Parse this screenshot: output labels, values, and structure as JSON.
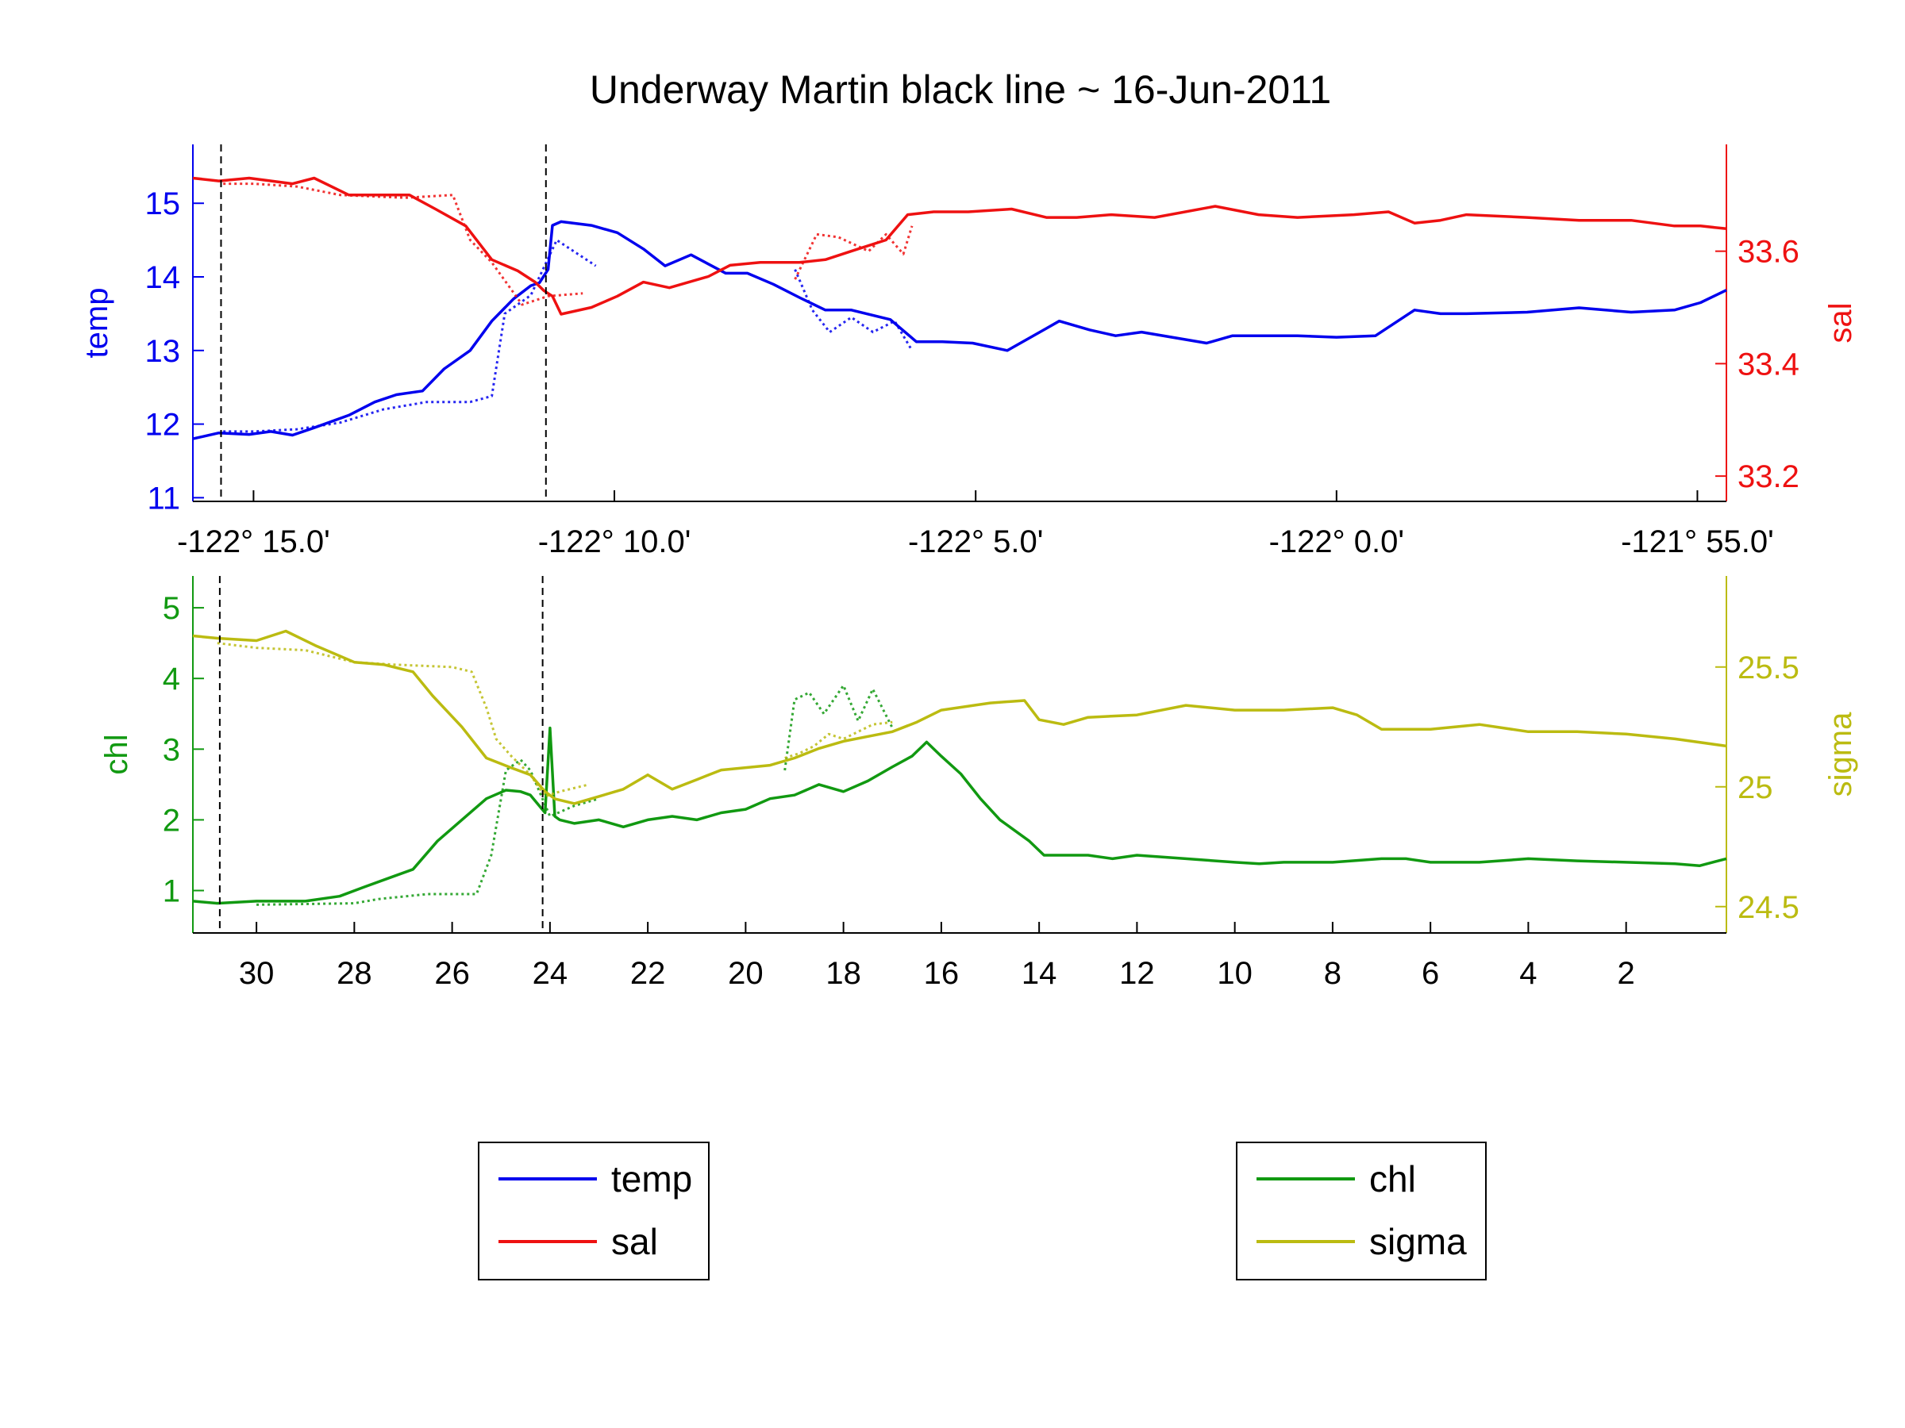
{
  "figure": {
    "title": "Underway Martin black line ~ 16-Jun-2011"
  },
  "colors": {
    "temp": "#0000ee",
    "sal": "#ee1111",
    "chl": "#119911",
    "sigma": "#bbbb11",
    "marker": "#000000"
  },
  "chart_data": [
    {
      "type": "line",
      "panel": "top",
      "xlim": [
        -122.264,
        -121.91
      ],
      "xticks": [
        -122.25,
        -122.1667,
        -122.0833,
        -122.0,
        -121.9167
      ],
      "xtick_labels": [
        "-122° 15.0'",
        "-122° 10.0'",
        "-122° 5.0'",
        "-122° 0.0'",
        "-121° 55.0'"
      ],
      "vlines_x": [
        -122.2575,
        -122.1825
      ],
      "left_axis": {
        "label": "temp",
        "ylim": [
          10.95,
          15.8
        ],
        "ticks": [
          11,
          12,
          13,
          14,
          15
        ],
        "tick_labels": [
          "11",
          "12",
          "13",
          "14",
          "15"
        ]
      },
      "right_axis": {
        "label": "sal",
        "ylim": [
          33.155,
          33.79
        ],
        "ticks": [
          33.2,
          33.4,
          33.6
        ],
        "tick_labels": [
          "33.2",
          "33.4",
          "33.6"
        ]
      },
      "series": [
        {
          "name": "temp",
          "axis": "left",
          "style": "solid",
          "x": [
            -122.264,
            -122.258,
            -122.251,
            -122.246,
            -122.241,
            -122.236,
            -122.228,
            -122.222,
            -122.217,
            -122.211,
            -122.206,
            -122.2,
            -122.195,
            -122.19,
            -122.186,
            -122.184,
            -122.182,
            -122.181,
            -122.179,
            -122.172,
            -122.166,
            -122.16,
            -122.155,
            -122.149,
            -122.141,
            -122.136,
            -122.13,
            -122.124,
            -122.118,
            -122.112,
            -122.103,
            -122.097,
            -122.091,
            -122.084,
            -122.076,
            -122.067,
            -122.064,
            -122.057,
            -122.051,
            -122.045,
            -122.03,
            -122.024,
            -122.018,
            -122.009,
            -122.0,
            -121.991,
            -121.982,
            -121.976,
            -121.97,
            -121.956,
            -121.944,
            -121.932,
            -121.922,
            -121.916,
            -121.91
          ],
          "y": [
            11.8,
            11.88,
            11.86,
            11.9,
            11.85,
            11.95,
            12.12,
            12.3,
            12.4,
            12.45,
            12.75,
            13.0,
            13.4,
            13.7,
            13.88,
            13.92,
            14.1,
            14.7,
            14.75,
            14.7,
            14.6,
            14.38,
            14.15,
            14.3,
            14.05,
            14.05,
            13.9,
            13.72,
            13.55,
            13.55,
            13.42,
            13.12,
            13.12,
            13.1,
            13.0,
            13.3,
            13.4,
            13.28,
            13.2,
            13.25,
            13.1,
            13.2,
            13.2,
            13.2,
            13.18,
            13.2,
            13.55,
            13.5,
            13.5,
            13.52,
            13.58,
            13.52,
            13.55,
            13.65,
            13.82
          ]
        },
        {
          "name": "temp (dotted)",
          "axis": "left",
          "style": "dotted",
          "x": [
            -122.257,
            -122.25,
            -122.24,
            -122.23,
            -122.22,
            -122.21,
            -122.2,
            -122.195,
            -122.192,
            -122.186,
            -122.18,
            -122.171
          ],
          "y": [
            11.9,
            11.9,
            11.93,
            12.02,
            12.2,
            12.3,
            12.3,
            12.38,
            13.5,
            13.75,
            14.5,
            14.15
          ]
        },
        {
          "name": "temp (dotted, mid)",
          "axis": "left",
          "style": "dotted",
          "x": [
            -122.125,
            -122.121,
            -122.117,
            -122.112,
            -122.107,
            -122.102,
            -122.098
          ],
          "y": [
            14.1,
            13.55,
            13.25,
            13.45,
            13.25,
            13.4,
            13.0
          ]
        },
        {
          "name": "sal",
          "axis": "right",
          "style": "solid",
          "x": [
            -122.264,
            -122.258,
            -122.251,
            -122.241,
            -122.236,
            -122.228,
            -122.222,
            -122.214,
            -122.208,
            -122.201,
            -122.195,
            -122.189,
            -122.185,
            -122.183,
            -122.181,
            -122.179,
            -122.172,
            -122.166,
            -122.16,
            -122.154,
            -122.145,
            -122.14,
            -122.133,
            -122.124,
            -122.118,
            -122.112,
            -122.104,
            -122.099,
            -122.093,
            -122.085,
            -122.075,
            -122.067,
            -122.06,
            -122.052,
            -122.042,
            -122.028,
            -122.018,
            -122.009,
            -121.996,
            -121.988,
            -121.982,
            -121.976,
            -121.97,
            -121.956,
            -121.944,
            -121.932,
            -121.922,
            -121.916,
            -121.91
          ],
          "y": [
            33.73,
            33.725,
            33.73,
            33.72,
            33.73,
            33.7,
            33.7,
            33.7,
            33.675,
            33.645,
            33.585,
            33.565,
            33.545,
            33.53,
            33.52,
            33.488,
            33.5,
            33.52,
            33.545,
            33.535,
            33.555,
            33.575,
            33.58,
            33.58,
            33.585,
            33.6,
            33.62,
            33.665,
            33.67,
            33.67,
            33.675,
            33.66,
            33.66,
            33.665,
            33.66,
            33.68,
            33.665,
            33.66,
            33.665,
            33.67,
            33.65,
            33.655,
            33.665,
            33.66,
            33.655,
            33.655,
            33.645,
            33.645,
            33.64
          ]
        },
        {
          "name": "sal (dotted)",
          "axis": "right",
          "style": "dotted",
          "x": [
            -122.257,
            -122.25,
            -122.24,
            -122.23,
            -122.215,
            -122.204,
            -122.2,
            -122.195,
            -122.188,
            -122.182,
            -122.174
          ],
          "y": [
            33.72,
            33.72,
            33.715,
            33.7,
            33.695,
            33.7,
            33.62,
            33.58,
            33.505,
            33.52,
            33.525
          ]
        },
        {
          "name": "sal (dotted, mid)",
          "axis": "right",
          "style": "dotted",
          "x": [
            -122.125,
            -122.12,
            -122.115,
            -122.108,
            -122.104,
            -122.1,
            -122.098
          ],
          "y": [
            33.55,
            33.63,
            33.625,
            33.6,
            33.63,
            33.595,
            33.645
          ]
        }
      ]
    },
    {
      "type": "line",
      "panel": "bottom",
      "xlim": [
        31.3,
        -0.05
      ],
      "xticks": [
        30,
        28,
        26,
        24,
        22,
        20,
        18,
        16,
        14,
        12,
        10,
        8,
        6,
        4,
        2
      ],
      "xtick_labels": [
        "30",
        "28",
        "26",
        "24",
        "22",
        "20",
        "18",
        "16",
        "14",
        "12",
        "10",
        "8",
        "6",
        "4",
        "2"
      ],
      "vlines_x": [
        30.75,
        24.15
      ],
      "left_axis": {
        "label": "chl",
        "ylim": [
          0.4,
          5.45
        ],
        "ticks": [
          1,
          2,
          3,
          4,
          5
        ],
        "tick_labels": [
          "1",
          "2",
          "3",
          "4",
          "5"
        ]
      },
      "right_axis": {
        "label": "sigma",
        "ylim": [
          24.39,
          25.88
        ],
        "ticks": [
          24.5,
          25,
          25.5
        ],
        "tick_labels": [
          "24.5",
          "25",
          "25.5"
        ]
      },
      "series": [
        {
          "name": "chl",
          "axis": "left",
          "style": "solid",
          "x": [
            31.3,
            30.8,
            30.0,
            29.0,
            28.3,
            27.8,
            27.2,
            26.8,
            26.3,
            25.8,
            25.3,
            24.9,
            24.6,
            24.4,
            24.1,
            24.0,
            23.9,
            23.8,
            23.5,
            23.0,
            22.5,
            22.0,
            21.5,
            21.0,
            20.5,
            20.0,
            19.5,
            19.0,
            18.5,
            18.0,
            17.5,
            17.0,
            16.6,
            16.3,
            16.0,
            15.6,
            15.2,
            14.8,
            14.5,
            14.2,
            13.9,
            13.5,
            13.0,
            12.5,
            12.0,
            11.0,
            10.0,
            9.5,
            9.0,
            8.0,
            7.0,
            6.5,
            6.0,
            5.0,
            4.0,
            3.0,
            2.0,
            1.0,
            0.5,
            -0.05
          ],
          "y": [
            0.85,
            0.82,
            0.85,
            0.85,
            0.92,
            1.05,
            1.2,
            1.3,
            1.7,
            2.0,
            2.3,
            2.42,
            2.4,
            2.35,
            2.1,
            3.3,
            2.05,
            2.0,
            1.95,
            2.0,
            1.9,
            2.0,
            2.05,
            2.0,
            2.1,
            2.15,
            2.3,
            2.35,
            2.5,
            2.4,
            2.55,
            2.75,
            2.9,
            3.1,
            2.9,
            2.65,
            2.3,
            2.0,
            1.85,
            1.7,
            1.5,
            1.5,
            1.5,
            1.45,
            1.5,
            1.45,
            1.4,
            1.38,
            1.4,
            1.4,
            1.45,
            1.45,
            1.4,
            1.4,
            1.45,
            1.42,
            1.4,
            1.38,
            1.35,
            1.45
          ]
        },
        {
          "name": "chl (dotted)",
          "axis": "left",
          "style": "dotted",
          "x": [
            30.0,
            28.0,
            27.5,
            26.5,
            25.5,
            25.2,
            24.9,
            24.6,
            24.4,
            24.0,
            23.5,
            23.0
          ],
          "y": [
            0.8,
            0.82,
            0.88,
            0.95,
            0.95,
            1.5,
            2.7,
            2.85,
            2.7,
            2.05,
            2.2,
            2.3
          ]
        },
        {
          "name": "chl (dotted, mid)",
          "axis": "left",
          "style": "dotted",
          "x": [
            19.2,
            19.0,
            18.7,
            18.4,
            18.0,
            17.7,
            17.4,
            17.0
          ],
          "y": [
            2.7,
            3.7,
            3.8,
            3.5,
            3.9,
            3.4,
            3.85,
            3.3
          ]
        },
        {
          "name": "sigma",
          "axis": "right",
          "style": "solid",
          "x": [
            31.3,
            30.8,
            30.0,
            29.4,
            28.8,
            28.0,
            27.4,
            26.8,
            26.4,
            25.8,
            25.3,
            24.8,
            24.4,
            24.1,
            23.9,
            23.5,
            23.0,
            22.5,
            22.0,
            21.5,
            21.0,
            20.5,
            20.0,
            19.5,
            19.0,
            18.5,
            18.0,
            17.5,
            17.0,
            16.5,
            16.0,
            15.0,
            14.3,
            14.0,
            13.5,
            13.0,
            12.0,
            11.0,
            10.0,
            9.0,
            8.0,
            7.5,
            7.0,
            6.0,
            5.0,
            4.0,
            3.0,
            2.0,
            1.0,
            -0.05
          ],
          "y": [
            25.63,
            25.62,
            25.61,
            25.65,
            25.59,
            25.52,
            25.51,
            25.48,
            25.38,
            25.25,
            25.12,
            25.08,
            25.05,
            24.98,
            24.95,
            24.93,
            24.96,
            24.99,
            25.05,
            24.99,
            25.03,
            25.07,
            25.08,
            25.09,
            25.12,
            25.16,
            25.19,
            25.21,
            25.23,
            25.27,
            25.32,
            25.35,
            25.36,
            25.28,
            25.26,
            25.29,
            25.3,
            25.34,
            25.32,
            25.32,
            25.33,
            25.3,
            25.24,
            25.24,
            25.26,
            25.23,
            25.23,
            25.22,
            25.2,
            25.17
          ]
        },
        {
          "name": "sigma (dotted)",
          "axis": "right",
          "style": "dotted",
          "x": [
            30.8,
            30.0,
            29.0,
            28.0,
            27.2,
            26.0,
            25.6,
            25.3,
            25.1,
            24.8,
            24.4,
            24.1,
            23.8,
            23.2
          ],
          "y": [
            25.6,
            25.58,
            25.57,
            25.52,
            25.51,
            25.5,
            25.48,
            25.33,
            25.2,
            25.13,
            25.05,
            24.96,
            24.98,
            25.01
          ]
        },
        {
          "name": "sigma (dotted, mid)",
          "axis": "right",
          "style": "dotted",
          "x": [
            19.2,
            18.9,
            18.6,
            18.3,
            18.0,
            17.7,
            17.4,
            17.0
          ],
          "y": [
            25.12,
            25.14,
            25.17,
            25.22,
            25.2,
            25.23,
            25.26,
            25.27
          ]
        }
      ]
    }
  ],
  "legends": [
    {
      "entries": [
        {
          "label": "temp",
          "color_key": "temp"
        },
        {
          "label": "sal",
          "color_key": "sal"
        }
      ]
    },
    {
      "entries": [
        {
          "label": "chl",
          "color_key": "chl"
        },
        {
          "label": "sigma",
          "color_key": "sigma"
        }
      ]
    }
  ]
}
